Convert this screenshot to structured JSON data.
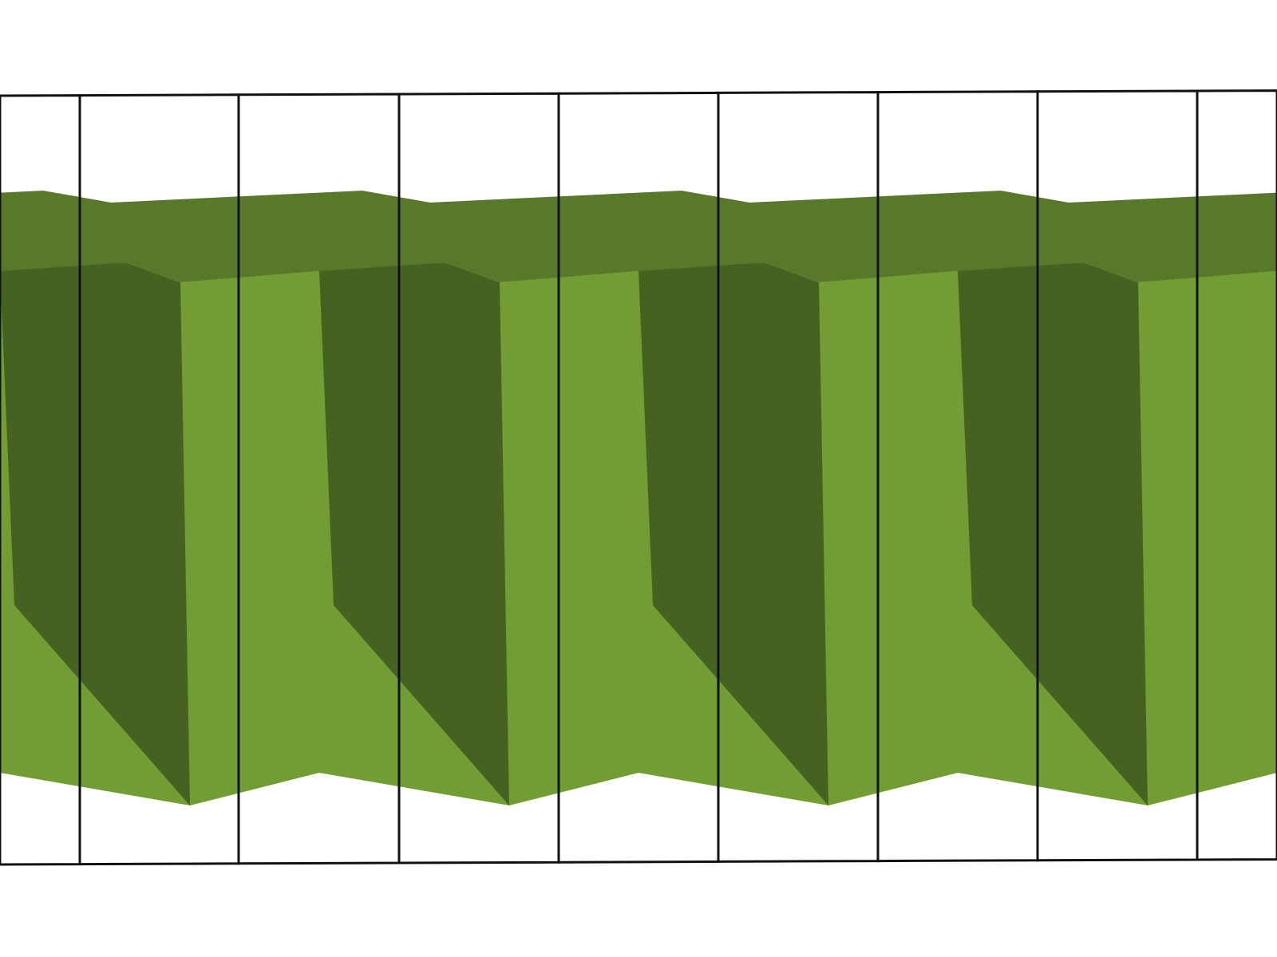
{
  "diagram": {
    "description_kind": "repeating-extruded-sawtooth-in-vertical-frames",
    "colors": {
      "background": "#ffffff",
      "top_face": "#58792a",
      "dark_face": "#466220",
      "light_face": "#729c34",
      "frame_stroke": "#111111"
    },
    "repeats": 4,
    "frame_count": 8
  }
}
